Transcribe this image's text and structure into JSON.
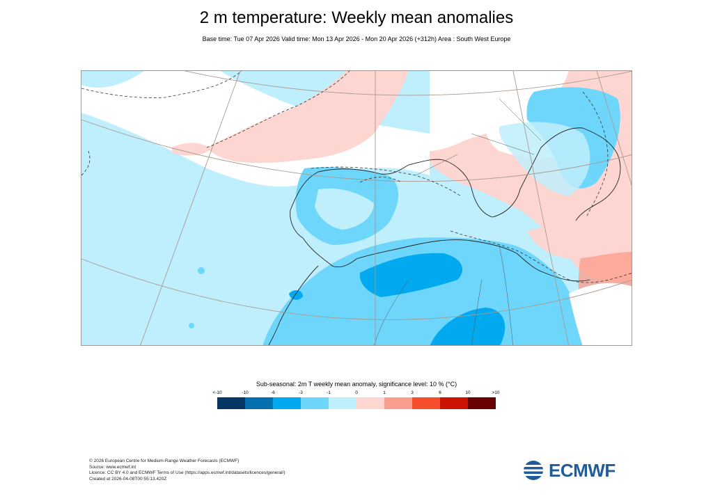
{
  "header": {
    "title": "2 m temperature: Weekly mean anomalies",
    "subtitle": "Base time: Tue 07 Apr 2026 Valid time: Mon 13 Apr 2026 - Mon 20 Apr 2026 (+312h) Area : South West Europe"
  },
  "map": {
    "region": "South West Europe",
    "dominant_anomaly_colors": {
      "ocean_and_north_africa": "#bfeefc",
      "deep_sahara": "#00a7ee",
      "europe_warm": "#fcc9c4",
      "east_med_warm": "#fa9f8e"
    }
  },
  "legend": {
    "title": "Sub-seasonal: 2m T weekly mean anomaly, significance level: 10 % (°C)",
    "ticks": [
      "<-10",
      "-10",
      "-6",
      "-3",
      "-1",
      "0",
      "1",
      "3",
      "6",
      "10",
      ">10"
    ],
    "colors": [
      "#063762",
      "#0570b0",
      "#03a9ef",
      "#6dd6fa",
      "#bfeefc",
      "#fdd6d1",
      "#fa9f8e",
      "#f44e2d",
      "#cc1405",
      "#690000"
    ]
  },
  "footer": {
    "line1": "© 2026 European Centre for Medium-Range Weather Forecasts (ECMWF)",
    "line2": "Source: www.ecmwf.int",
    "line3": "Licence: CC BY 4.0 and ECMWF Terms of Use (https://apps.ecmwf.int/datasets/licences/general/)",
    "line4": "Created at 2026-04-08T00:55:13.420Z"
  },
  "logo": {
    "text": "ECMWF"
  }
}
